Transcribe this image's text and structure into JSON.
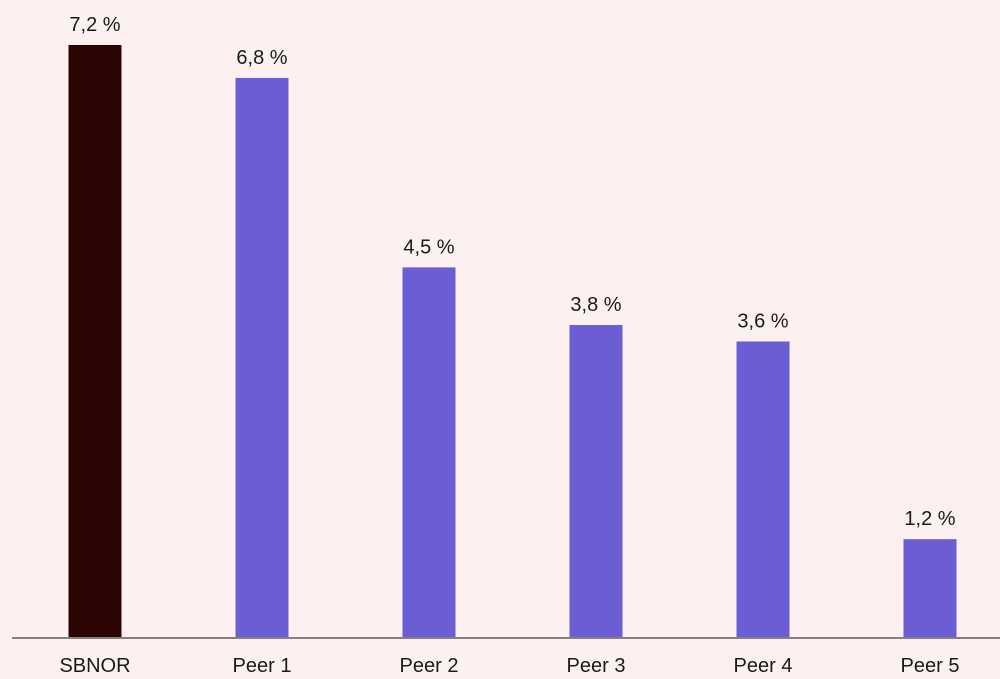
{
  "chart_data": {
    "type": "bar",
    "categories": [
      "SBNOR",
      "Peer 1",
      "Peer 2",
      "Peer 3",
      "Peer 4",
      "Peer 5"
    ],
    "values": [
      7.2,
      6.8,
      4.5,
      3.8,
      3.6,
      1.2
    ],
    "value_labels": [
      "7,2 %",
      "6,8 %",
      "4,5 %",
      "3,8 %",
      "3,6 %",
      "1,2 %"
    ],
    "title": "",
    "xlabel": "",
    "ylabel": "",
    "ylim": [
      0,
      7.2
    ],
    "grid": false,
    "legend": "none",
    "colors": {
      "highlight": "#2b0404",
      "default": "#6b5dd3",
      "axis": "#8a7f7f",
      "background": "#fdf0f0"
    },
    "highlight_index": 0
  }
}
